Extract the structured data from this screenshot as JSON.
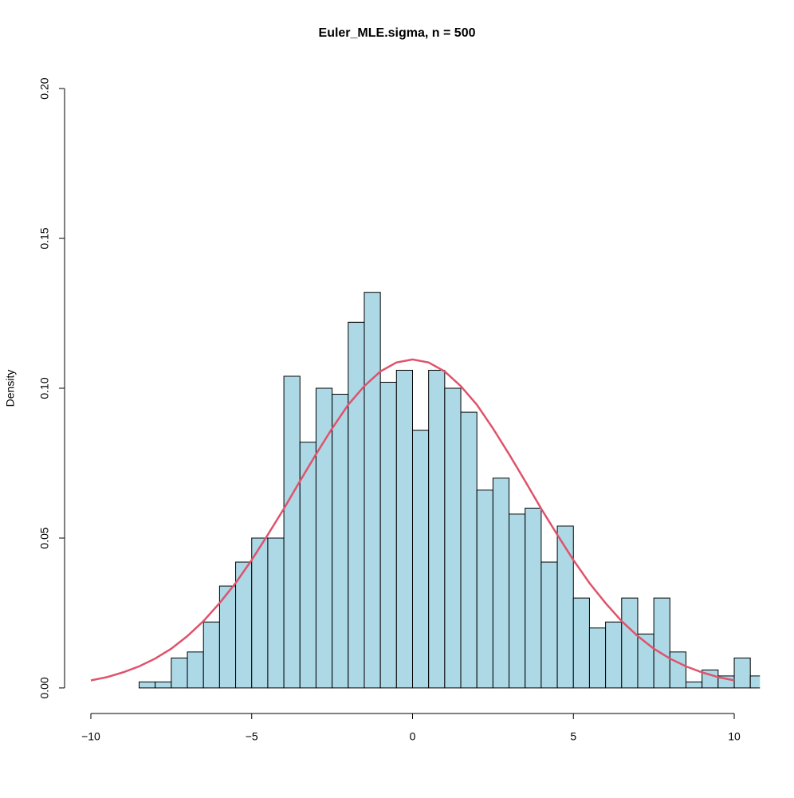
{
  "chart_data": {
    "type": "histogram",
    "title": "Euler_MLE.sigma, n = 500",
    "ylabel": "Density",
    "bins": [
      -8.5,
      -8,
      -7.5,
      -7,
      -6.5,
      -6,
      -5.5,
      -5,
      -4.5,
      -4,
      -3.5,
      -3,
      -2.5,
      -2,
      -1.5,
      -1,
      -0.5,
      0,
      0.5,
      1,
      1.5,
      2,
      2.5,
      3,
      3.5,
      4,
      4.5,
      5,
      5.5,
      6,
      6.5,
      7,
      7.5,
      8,
      8.5,
      9,
      9.5,
      10,
      10.5,
      11
    ],
    "values": [
      0.002,
      0.002,
      0.01,
      0.012,
      0.022,
      0.034,
      0.042,
      0.05,
      0.05,
      0.104,
      0.082,
      0.1,
      0.098,
      0.122,
      0.132,
      0.102,
      0.106,
      0.086,
      0.106,
      0.1,
      0.092,
      0.066,
      0.07,
      0.058,
      0.06,
      0.042,
      0.054,
      0.03,
      0.02,
      0.022,
      0.03,
      0.018,
      0.03,
      0.012,
      0.002,
      0.006,
      0.004,
      0.01,
      0.004
    ],
    "color": "#add8e6",
    "curve": {
      "color": "#df536b",
      "x": [
        -10,
        -9.5,
        -9,
        -8.5,
        -8,
        -7.5,
        -7,
        -6.5,
        -6,
        -5.5,
        -5,
        -4.5,
        -4,
        -3.5,
        -3,
        -2.5,
        -2,
        -1.5,
        -1,
        -0.5,
        0,
        0.5,
        1,
        1.5,
        2,
        2.5,
        3,
        3.5,
        4,
        4.5,
        5,
        5.5,
        6,
        6.5,
        7,
        7.5,
        8,
        8.5,
        9,
        9.5,
        10
      ],
      "values": [
        0.0025,
        0.0036,
        0.0052,
        0.0072,
        0.0098,
        0.0131,
        0.0173,
        0.0223,
        0.0283,
        0.035,
        0.0427,
        0.0511,
        0.0598,
        0.069,
        0.078,
        0.0866,
        0.0945,
        0.1007,
        0.1056,
        0.1086,
        0.1096,
        0.1086,
        0.1056,
        0.1007,
        0.0945,
        0.0866,
        0.078,
        0.069,
        0.0598,
        0.0511,
        0.0427,
        0.035,
        0.0283,
        0.0223,
        0.0173,
        0.0131,
        0.0098,
        0.0072,
        0.0052,
        0.0036,
        0.0025
      ]
    },
    "xlim": [
      -10.8,
      10.8
    ],
    "ylim": [
      -0.008,
      0.208
    ],
    "xticks": [
      {
        "value": -10,
        "label": "−10"
      },
      {
        "value": -5,
        "label": "−5"
      },
      0,
      5,
      10
    ],
    "yticks": [
      {
        "value": 0,
        "label": "0.00"
      },
      {
        "value": 0.05,
        "label": "0.05"
      },
      {
        "value": 0.1,
        "label": "0.10"
      },
      {
        "value": 0.15,
        "label": "0.15"
      },
      {
        "value": 0.2,
        "label": "0.20"
      }
    ],
    "grid": false
  }
}
